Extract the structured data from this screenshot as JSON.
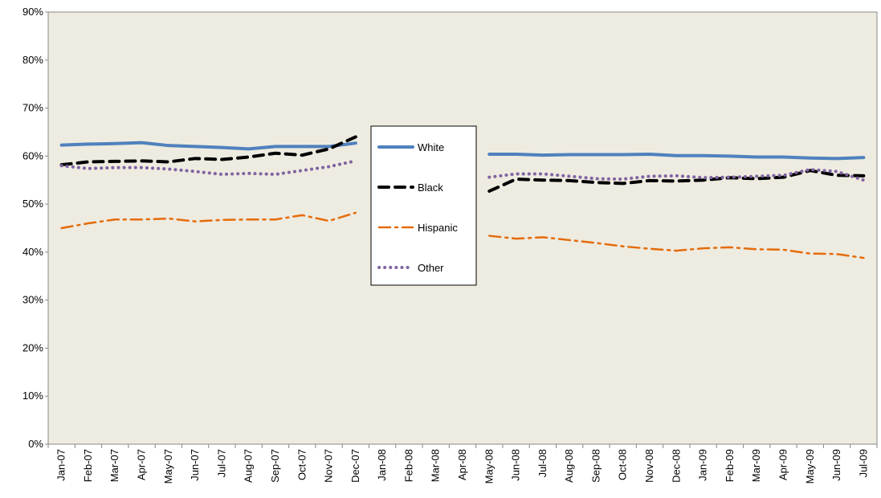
{
  "chart_data": {
    "type": "line",
    "categories": [
      "Jan-07",
      "Feb-07",
      "Mar-07",
      "Apr-07",
      "May-07",
      "Jun-07",
      "Jul-07",
      "Aug-07",
      "Sep-07",
      "Oct-07",
      "Nov-07",
      "Dec-07",
      "Jan-08",
      "Feb-08",
      "Mar-08",
      "Apr-08",
      "May-08",
      "Jun-08",
      "Jul-08",
      "Aug-08",
      "Sep-08",
      "Oct-08",
      "Nov-08",
      "Dec-08",
      "Jan-09",
      "Feb-09",
      "Mar-09",
      "Apr-09",
      "May-09",
      "Jun-09",
      "Jul-09"
    ],
    "series": [
      {
        "name": "White",
        "color": "#4f81bd",
        "dash": "solid",
        "values": [
          62.3,
          62.5,
          62.6,
          62.8,
          62.2,
          62.0,
          61.8,
          61.5,
          62.0,
          62.0,
          62.0,
          62.7,
          null,
          null,
          null,
          null,
          60.4,
          60.4,
          60.2,
          60.3,
          60.3,
          60.3,
          60.4,
          60.1,
          60.1,
          60.0,
          59.8,
          59.8,
          59.6,
          59.5,
          59.7
        ]
      },
      {
        "name": "Black",
        "color": "#000000",
        "dash": "dashed",
        "values": [
          58.2,
          58.8,
          58.9,
          59.0,
          58.8,
          59.5,
          59.3,
          59.8,
          60.6,
          60.2,
          61.5,
          64.0,
          null,
          null,
          null,
          null,
          52.7,
          55.2,
          55.0,
          54.9,
          54.5,
          54.3,
          54.9,
          54.8,
          55.0,
          55.5,
          55.3,
          55.6,
          57.0,
          56.0,
          55.9
        ]
      },
      {
        "name": "Hispanic",
        "color": "#e46c0a",
        "dash": "dashdot",
        "values": [
          45.0,
          46.0,
          46.8,
          46.8,
          47.0,
          46.4,
          46.7,
          46.8,
          46.8,
          47.7,
          46.5,
          48.2,
          null,
          null,
          null,
          null,
          43.4,
          42.8,
          43.1,
          42.5,
          41.9,
          41.2,
          40.7,
          40.3,
          40.8,
          41.0,
          40.6,
          40.5,
          39.7,
          39.6,
          38.8
        ]
      },
      {
        "name": "Other",
        "color": "#8064a2",
        "dash": "dotted",
        "values": [
          58.0,
          57.4,
          57.6,
          57.6,
          57.3,
          56.8,
          56.2,
          56.4,
          56.2,
          57.0,
          57.8,
          59.0,
          null,
          null,
          null,
          null,
          55.6,
          56.3,
          56.3,
          55.8,
          55.3,
          55.2,
          55.8,
          55.9,
          55.5,
          55.6,
          55.8,
          56.0,
          57.2,
          56.8,
          55.0
        ]
      }
    ],
    "ylim": [
      0,
      90
    ],
    "yticks": [
      {
        "value": 0,
        "label": "0%"
      },
      {
        "value": 10,
        "label": "10%"
      },
      {
        "value": 20,
        "label": "20%"
      },
      {
        "value": 30,
        "label": "30%"
      },
      {
        "value": 40,
        "label": "40%"
      },
      {
        "value": 50,
        "label": "50%"
      },
      {
        "value": 60,
        "label": "60%"
      },
      {
        "value": 70,
        "label": "70%"
      },
      {
        "value": 80,
        "label": "80%"
      },
      {
        "value": 90,
        "label": "90%"
      }
    ],
    "legend": "center"
  }
}
